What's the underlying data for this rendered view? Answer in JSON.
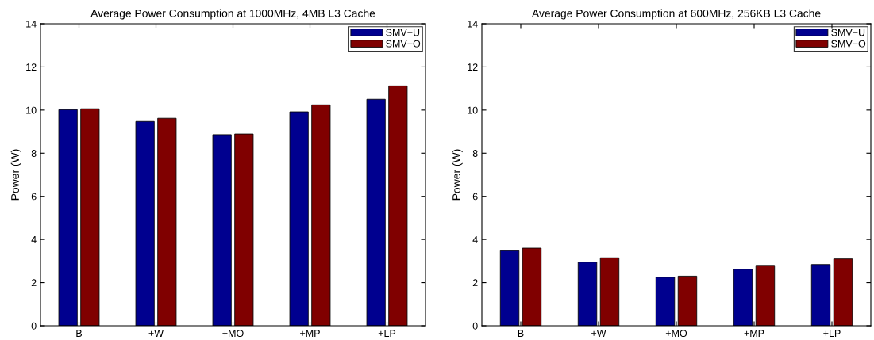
{
  "chart_data": [
    {
      "type": "bar",
      "title": "Average Power Consumption at 1000MHz, 4MB L3 Cache",
      "ylabel": "Power (W)",
      "categories": [
        "B",
        "+W",
        "+MO",
        "+MP",
        "+LP"
      ],
      "series": [
        {
          "name": "SMV−U",
          "color": "#00008f",
          "values": [
            10.02,
            9.47,
            8.86,
            9.92,
            10.5
          ]
        },
        {
          "name": "SMV−O",
          "color": "#800000",
          "values": [
            10.06,
            9.62,
            8.89,
            10.24,
            11.12
          ]
        }
      ],
      "ylim": [
        0,
        14
      ],
      "yticks": [
        0,
        2,
        4,
        6,
        8,
        10,
        12,
        14
      ],
      "grid": false,
      "legend": "top right"
    },
    {
      "type": "bar",
      "title": "Average Power Consumption at 600MHz, 256KB L3 Cache",
      "ylabel": "Power (W)",
      "categories": [
        "B",
        "+W",
        "+MO",
        "+MP",
        "+LP"
      ],
      "series": [
        {
          "name": "SMV−U",
          "color": "#00008f",
          "values": [
            3.48,
            2.95,
            2.25,
            2.62,
            2.84
          ]
        },
        {
          "name": "SMV−O",
          "color": "#800000",
          "values": [
            3.6,
            3.15,
            2.3,
            2.8,
            3.1
          ]
        }
      ],
      "ylim": [
        0,
        14
      ],
      "yticks": [
        0,
        2,
        4,
        6,
        8,
        10,
        12,
        14
      ],
      "grid": false,
      "legend": "top right"
    }
  ]
}
